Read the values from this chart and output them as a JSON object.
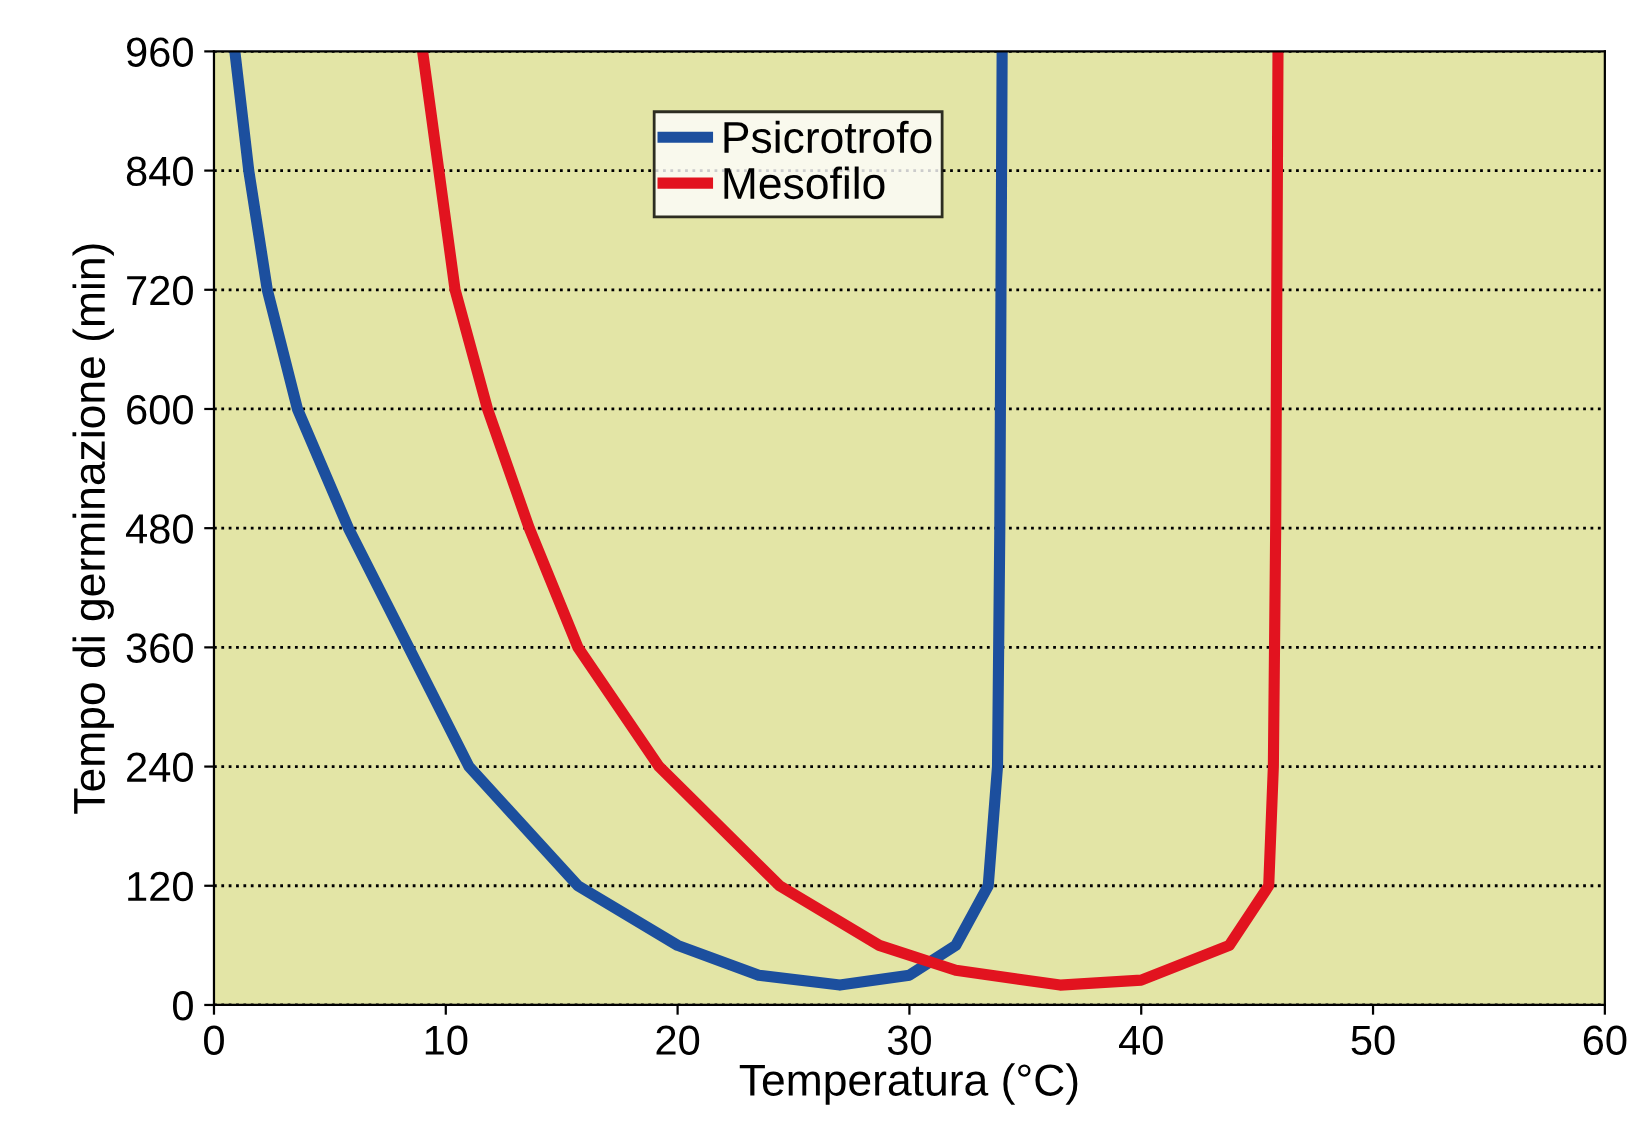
{
  "chart_data": {
    "type": "line",
    "xlabel": "Temperatura (°C)",
    "ylabel": "Tempo di germinazione (min)",
    "xlim": [
      0,
      60
    ],
    "ylim": [
      0,
      960
    ],
    "xticks": [
      0,
      10,
      20,
      30,
      40,
      50,
      60
    ],
    "yticks": [
      0,
      120,
      240,
      360,
      480,
      600,
      720,
      840,
      960
    ],
    "grid": "y",
    "legend": "top",
    "marker": "none",
    "line_style": "solid",
    "series": [
      {
        "name": "Psicrotrofo",
        "color": "#1c4f9e",
        "x": [
          0.9,
          1.5,
          2.3,
          3.6,
          5.8,
          8.4,
          11,
          15.7,
          20,
          23.5,
          27,
          30,
          32,
          33.4,
          33.8,
          33.9,
          34
        ],
        "values": [
          960,
          840,
          720,
          600,
          480,
          360,
          240,
          120,
          60,
          30,
          20,
          30,
          60,
          120,
          240,
          480,
          960
        ]
      },
      {
        "name": "Mesofilo",
        "color": "#e2131f",
        "x": [
          9,
          10.4,
          11.8,
          13.6,
          15.7,
          19.2,
          24.4,
          28.7,
          32,
          36.5,
          40,
          43.8,
          45.5,
          45.7,
          45.8,
          45.9
        ],
        "values": [
          960,
          720,
          600,
          480,
          360,
          240,
          120,
          60,
          35,
          20,
          25,
          60,
          120,
          240,
          480,
          960
        ]
      }
    ]
  }
}
